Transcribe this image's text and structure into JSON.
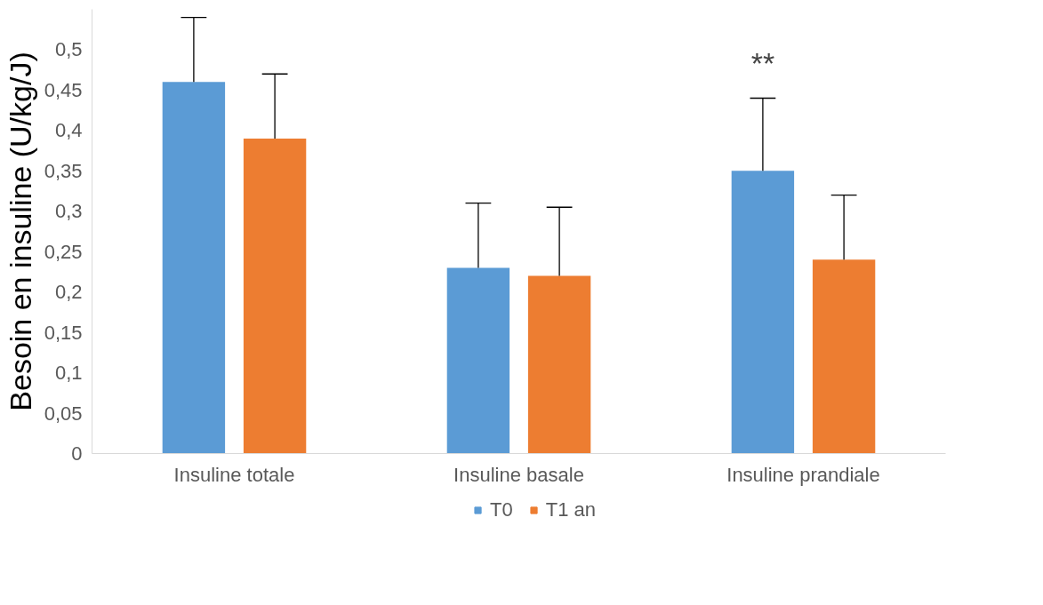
{
  "chart_data": {
    "type": "bar",
    "ylabel": "Besoin en insuline (U/kg/J)",
    "categories": [
      "Insuline totale",
      "Insuline basale",
      "Insuline prandiale"
    ],
    "series": [
      {
        "name": "T0",
        "color": "#5b9bd5",
        "values": [
          0.46,
          0.23,
          0.35
        ],
        "errors": [
          [
            0.46,
            0.54
          ],
          [
            0.23,
            0.31
          ],
          [
            0.35,
            0.44
          ]
        ]
      },
      {
        "name": "T1 an",
        "color": "#ed7d31",
        "values": [
          0.39,
          0.22,
          0.24
        ],
        "errors": [
          [
            0.39,
            0.47
          ],
          [
            0.22,
            0.305
          ],
          [
            0.24,
            0.32
          ]
        ]
      }
    ],
    "ylim": [
      0,
      0.55
    ],
    "yticks": [
      0,
      {
        "value": 0.05,
        "label": "0,05"
      },
      {
        "value": 0.1,
        "label": "0,1"
      },
      {
        "value": 0.15,
        "label": "0,15"
      },
      {
        "value": 0.2,
        "label": "0,2"
      },
      {
        "value": 0.25,
        "label": "0,25"
      },
      {
        "value": 0.3,
        "label": "0,3"
      },
      {
        "value": 0.35,
        "label": "0,35"
      },
      {
        "value": 0.4,
        "label": "0,4"
      },
      {
        "value": 0.45,
        "label": "0,45"
      },
      {
        "value": 0.5,
        "label": "0,5"
      }
    ],
    "annotations": [
      "**"
    ],
    "grid": false,
    "legend": "bottom"
  }
}
